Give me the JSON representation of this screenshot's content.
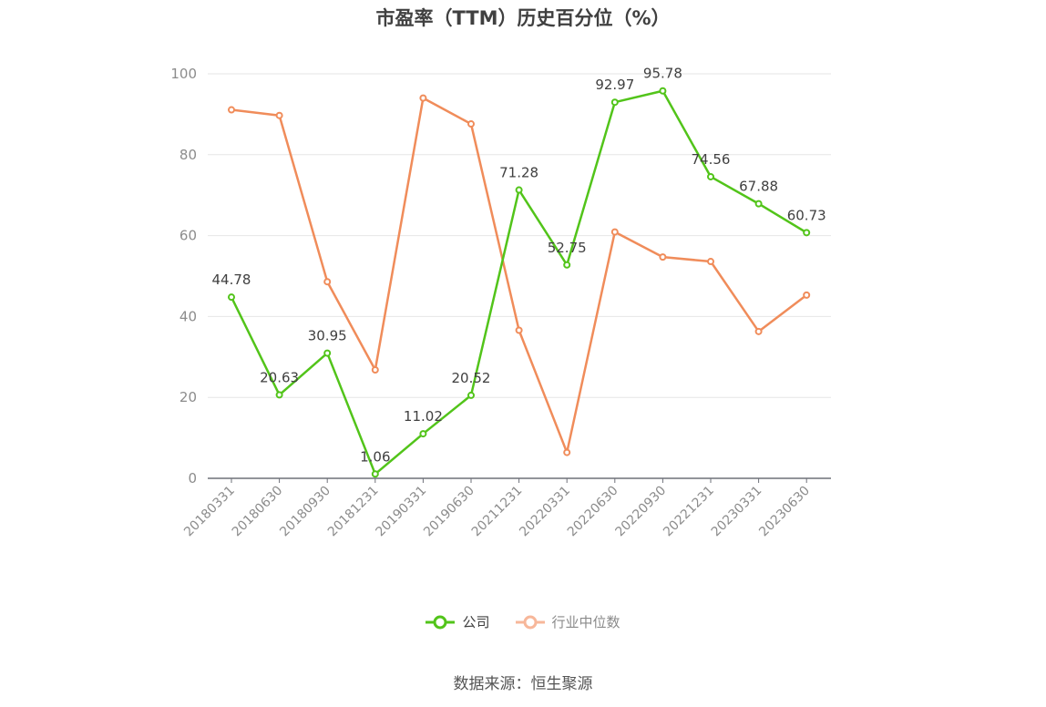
{
  "chart_data": {
    "type": "line",
    "title": "市盈率（TTM）历史百分位（%）",
    "categories": [
      "20180331",
      "20180630",
      "20180930",
      "20181231",
      "20190331",
      "20190630",
      "20211231",
      "20220331",
      "20220630",
      "20220930",
      "20221231",
      "20230331",
      "20230630"
    ],
    "series": [
      {
        "name": "公司",
        "color": "#52c41a",
        "values": [
          44.78,
          20.63,
          30.95,
          1.06,
          11.02,
          20.52,
          71.28,
          52.75,
          92.97,
          95.78,
          74.56,
          67.88,
          60.73
        ],
        "labels": [
          "44.78",
          "20.63",
          "30.95",
          "1.06",
          "11.02",
          "20.52",
          "71.28",
          "52.75",
          "92.97",
          "95.78",
          "74.56",
          "67.88",
          "60.73"
        ]
      },
      {
        "name": "行业中位数",
        "color": "#f08c5a",
        "values": [
          91.1,
          89.7,
          48.6,
          26.8,
          94.0,
          87.6,
          36.6,
          6.4,
          60.9,
          54.7,
          53.6,
          36.3,
          45.3
        ]
      }
    ],
    "yticks": [
      "0",
      "20",
      "40",
      "60",
      "80",
      "100"
    ],
    "ylim": [
      0,
      100
    ],
    "grid": true,
    "legend_position": "bottom-center",
    "source": "数据来源：恒生聚源"
  }
}
